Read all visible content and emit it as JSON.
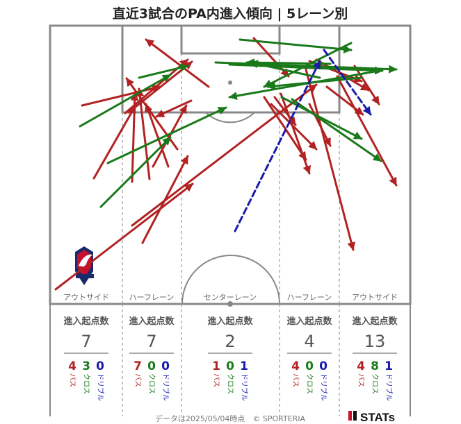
{
  "title": "直近3試合のPA内進入傾向 | 5レーン別",
  "colors": {
    "pass": "#b22222",
    "cross": "#1a7a1a",
    "dribble": "#1a1aaa"
  },
  "lanes": [
    {
      "label": "アウトサイド",
      "header": "進入起点数",
      "total": 7,
      "pass": 4,
      "cross": 3,
      "dribble": 0
    },
    {
      "label": "ハーフレーン",
      "header": "進入起点数",
      "total": 7,
      "pass": 7,
      "cross": 0,
      "dribble": 0
    },
    {
      "label": "センターレーン",
      "header": "進入起点数",
      "total": 2,
      "pass": 1,
      "cross": 0,
      "dribble": 1
    },
    {
      "label": "ハーフレーン",
      "header": "進入起点数",
      "total": 4,
      "pass": 4,
      "cross": 0,
      "dribble": 0
    },
    {
      "label": "アウトサイド",
      "header": "進入起点数",
      "total": 13,
      "pass": 4,
      "cross": 8,
      "dribble": 1
    }
  ],
  "legend": {
    "pass": "パス",
    "cross": "クロス",
    "dribble": "ドリブル"
  },
  "footer": "データは2025/05/04時点　© SPORTERIA",
  "brand": "STATs",
  "chart_data": {
    "type": "scatter",
    "title": "直近3試合のPA内進入傾向 | 5レーン別",
    "xlabel": "",
    "ylabel": "",
    "series": [
      {
        "name": "パス",
        "arrows": [
          [
            80,
            417,
            277,
            265
          ],
          [
            190,
            325,
            455,
            122
          ],
          [
            205,
            350,
            270,
            225
          ],
          [
            220,
            240,
            268,
            152
          ],
          [
            215,
            258,
            200,
            128
          ],
          [
            190,
            262,
            194,
            134
          ],
          [
            135,
            257,
            195,
            152
          ],
          [
            118,
            152,
            230,
            125
          ],
          [
            242,
            240,
            210,
            150
          ],
          [
            255,
            215,
            182,
            113
          ],
          [
            300,
            125,
            210,
            57
          ],
          [
            180,
            163,
            270,
            86
          ],
          [
            390,
            150,
            455,
            215
          ],
          [
            380,
            140,
            440,
            230
          ],
          [
            404,
            135,
            445,
            250
          ],
          [
            440,
            100,
            508,
            360
          ],
          [
            485,
            110,
            570,
            267
          ],
          [
            445,
            88,
            520,
            117
          ],
          [
            455,
            86,
            530,
            130
          ],
          [
            510,
            95,
            545,
            150
          ],
          [
            470,
            125,
            522,
            165
          ],
          [
            185,
            162,
            276,
            89
          ],
          [
            445,
            150,
            475,
            210
          ],
          [
            395,
            140,
            425,
            180
          ],
          [
            365,
            55,
            415,
            110
          ],
          [
            275,
            145,
            225,
            168
          ]
        ]
      },
      {
        "name": "クロス",
        "arrows": [
          [
            115,
            182,
            245,
            108
          ],
          [
            145,
            298,
            245,
            198
          ],
          [
            155,
            235,
            325,
            155
          ],
          [
            200,
            112,
            270,
            95
          ],
          [
            345,
            57,
            505,
            72
          ],
          [
            330,
            93,
            550,
            102
          ],
          [
            310,
            90,
            570,
            100
          ],
          [
            420,
            143,
            548,
            232
          ],
          [
            405,
            140,
            520,
            200
          ],
          [
            545,
            102,
            330,
            140
          ],
          [
            505,
            62,
            380,
            125
          ],
          [
            475,
            92,
            355,
            90
          ],
          [
            460,
            112,
            360,
            90
          ],
          [
            520,
            112,
            385,
            125
          ]
        ]
      },
      {
        "name": "ドリブル",
        "arrows": [
          [
            338,
            333,
            460,
            88
          ],
          [
            466,
            72,
            533,
            165
          ]
        ]
      }
    ],
    "lane_labels": [
      "アウトサイド",
      "ハーフレーン",
      "センターレーン",
      "ハーフレーン",
      "アウトサイド"
    ],
    "totals": [
      7,
      7,
      2,
      4,
      13
    ]
  }
}
